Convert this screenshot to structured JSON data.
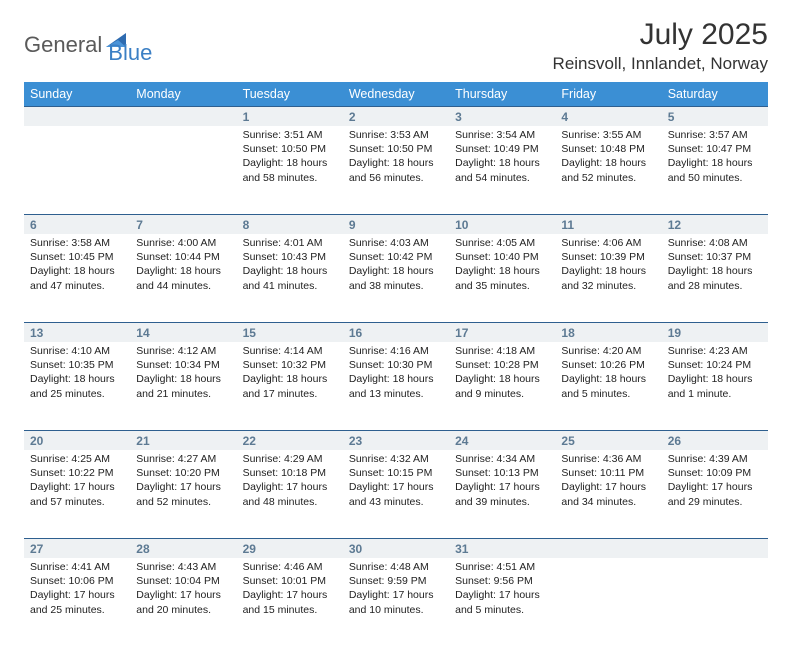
{
  "brand": {
    "word1": "General",
    "word2": "Blue"
  },
  "title": "July 2025",
  "location": "Reinsvoll, Innlandet, Norway",
  "colors": {
    "header_bg": "#3b8fd4",
    "header_text": "#ffffff",
    "daynum_bg": "#eef1f3",
    "daynum_text": "#5d7a93",
    "rule": "#2e5f8f",
    "logo_gray": "#5a5a5a",
    "logo_blue": "#3b7fc4",
    "body_text": "#222222",
    "page_bg": "#ffffff"
  },
  "dayHeaders": [
    "Sunday",
    "Monday",
    "Tuesday",
    "Wednesday",
    "Thursday",
    "Friday",
    "Saturday"
  ],
  "weeks": [
    [
      null,
      null,
      {
        "n": "1",
        "sr": "3:51 AM",
        "ss": "10:50 PM",
        "dl": "18 hours and 58 minutes."
      },
      {
        "n": "2",
        "sr": "3:53 AM",
        "ss": "10:50 PM",
        "dl": "18 hours and 56 minutes."
      },
      {
        "n": "3",
        "sr": "3:54 AM",
        "ss": "10:49 PM",
        "dl": "18 hours and 54 minutes."
      },
      {
        "n": "4",
        "sr": "3:55 AM",
        "ss": "10:48 PM",
        "dl": "18 hours and 52 minutes."
      },
      {
        "n": "5",
        "sr": "3:57 AM",
        "ss": "10:47 PM",
        "dl": "18 hours and 50 minutes."
      }
    ],
    [
      {
        "n": "6",
        "sr": "3:58 AM",
        "ss": "10:45 PM",
        "dl": "18 hours and 47 minutes."
      },
      {
        "n": "7",
        "sr": "4:00 AM",
        "ss": "10:44 PM",
        "dl": "18 hours and 44 minutes."
      },
      {
        "n": "8",
        "sr": "4:01 AM",
        "ss": "10:43 PM",
        "dl": "18 hours and 41 minutes."
      },
      {
        "n": "9",
        "sr": "4:03 AM",
        "ss": "10:42 PM",
        "dl": "18 hours and 38 minutes."
      },
      {
        "n": "10",
        "sr": "4:05 AM",
        "ss": "10:40 PM",
        "dl": "18 hours and 35 minutes."
      },
      {
        "n": "11",
        "sr": "4:06 AM",
        "ss": "10:39 PM",
        "dl": "18 hours and 32 minutes."
      },
      {
        "n": "12",
        "sr": "4:08 AM",
        "ss": "10:37 PM",
        "dl": "18 hours and 28 minutes."
      }
    ],
    [
      {
        "n": "13",
        "sr": "4:10 AM",
        "ss": "10:35 PM",
        "dl": "18 hours and 25 minutes."
      },
      {
        "n": "14",
        "sr": "4:12 AM",
        "ss": "10:34 PM",
        "dl": "18 hours and 21 minutes."
      },
      {
        "n": "15",
        "sr": "4:14 AM",
        "ss": "10:32 PM",
        "dl": "18 hours and 17 minutes."
      },
      {
        "n": "16",
        "sr": "4:16 AM",
        "ss": "10:30 PM",
        "dl": "18 hours and 13 minutes."
      },
      {
        "n": "17",
        "sr": "4:18 AM",
        "ss": "10:28 PM",
        "dl": "18 hours and 9 minutes."
      },
      {
        "n": "18",
        "sr": "4:20 AM",
        "ss": "10:26 PM",
        "dl": "18 hours and 5 minutes."
      },
      {
        "n": "19",
        "sr": "4:23 AM",
        "ss": "10:24 PM",
        "dl": "18 hours and 1 minute."
      }
    ],
    [
      {
        "n": "20",
        "sr": "4:25 AM",
        "ss": "10:22 PM",
        "dl": "17 hours and 57 minutes."
      },
      {
        "n": "21",
        "sr": "4:27 AM",
        "ss": "10:20 PM",
        "dl": "17 hours and 52 minutes."
      },
      {
        "n": "22",
        "sr": "4:29 AM",
        "ss": "10:18 PM",
        "dl": "17 hours and 48 minutes."
      },
      {
        "n": "23",
        "sr": "4:32 AM",
        "ss": "10:15 PM",
        "dl": "17 hours and 43 minutes."
      },
      {
        "n": "24",
        "sr": "4:34 AM",
        "ss": "10:13 PM",
        "dl": "17 hours and 39 minutes."
      },
      {
        "n": "25",
        "sr": "4:36 AM",
        "ss": "10:11 PM",
        "dl": "17 hours and 34 minutes."
      },
      {
        "n": "26",
        "sr": "4:39 AM",
        "ss": "10:09 PM",
        "dl": "17 hours and 29 minutes."
      }
    ],
    [
      {
        "n": "27",
        "sr": "4:41 AM",
        "ss": "10:06 PM",
        "dl": "17 hours and 25 minutes."
      },
      {
        "n": "28",
        "sr": "4:43 AM",
        "ss": "10:04 PM",
        "dl": "17 hours and 20 minutes."
      },
      {
        "n": "29",
        "sr": "4:46 AM",
        "ss": "10:01 PM",
        "dl": "17 hours and 15 minutes."
      },
      {
        "n": "30",
        "sr": "4:48 AM",
        "ss": "9:59 PM",
        "dl": "17 hours and 10 minutes."
      },
      {
        "n": "31",
        "sr": "4:51 AM",
        "ss": "9:56 PM",
        "dl": "17 hours and 5 minutes."
      },
      null,
      null
    ]
  ],
  "labels": {
    "sunrise": "Sunrise:",
    "sunset": "Sunset:",
    "daylight": "Daylight:"
  }
}
